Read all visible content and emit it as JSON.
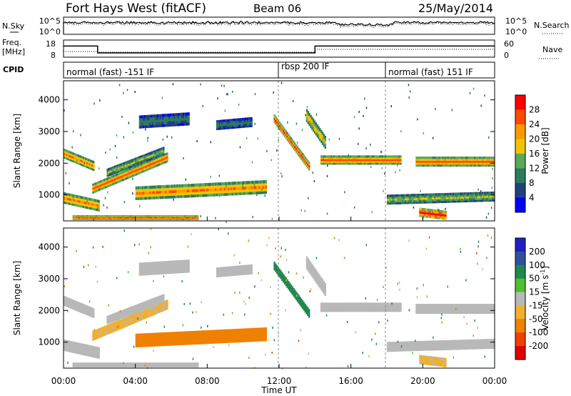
{
  "header": {
    "station": "Fort Hays West (fitACF)",
    "beam": "Beam 06",
    "date": "25/May/2014"
  },
  "noise_panel": {
    "left_label": "N.Sky",
    "right_label": "N.Search",
    "left_ticks": [
      "10^5",
      "10^0"
    ],
    "right_ticks": [
      "10^5",
      "10^0"
    ]
  },
  "freq_panel": {
    "left_label_line1": "Freq.",
    "left_label_line2": "[MHz]",
    "right_label": "Nave",
    "left_ticks": [
      "18",
      "8"
    ],
    "right_ticks": [
      "60",
      "0"
    ]
  },
  "cpid_panel": {
    "label": "CPID",
    "segments": [
      {
        "text": "normal (fast) -151 IF",
        "start": 0,
        "end": 12
      },
      {
        "text": "rbsp 200 IF",
        "start": 12,
        "end": 18
      },
      {
        "text": "normal (fast) 151 IF",
        "start": 18,
        "end": 24
      }
    ]
  },
  "power_panel": {
    "ylabel": "Slant Range [km]",
    "yticks": [
      "1000",
      "2000",
      "3000",
      "4000"
    ],
    "colorbar_label": "Power [dB]",
    "colorbar_ticks": [
      "28",
      "24",
      "20",
      "16",
      "12",
      "8",
      "4"
    ],
    "colorbar_colors": [
      "#ff0000",
      "#ff4a00",
      "#ff9a00",
      "#f2c400",
      "#5aa858",
      "#2e7a5e",
      "#204080",
      "#0000ff"
    ]
  },
  "velocity_panel": {
    "ylabel": "Slant Range [km]",
    "yticks": [
      "1000",
      "2000",
      "3000",
      "4000"
    ],
    "colorbar_label": "Velocity [m s",
    "colorbar_label_sup": "-1",
    "colorbar_label_end": "]",
    "colorbar_ticks": [
      "200",
      "100",
      "50",
      "15",
      "-15",
      "-50",
      "-100",
      "-200"
    ],
    "colorbar_colors": [
      "#2020c0",
      "#3050a0",
      "#208850",
      "#50c030",
      "#b8b8b8",
      "#f0b030",
      "#f08000",
      "#f04000",
      "#e00000"
    ]
  },
  "xaxis": {
    "label": "Time UT",
    "ticks": [
      "00:00",
      "04:00",
      "08:00",
      "12:00",
      "16:00",
      "20:00",
      "00:00"
    ]
  },
  "chart_data": {
    "type": "heatmap",
    "x_range_hours": [
      0,
      24
    ],
    "y_range_km": [
      180,
      4600
    ],
    "echo_bands": [
      {
        "t0": 0.0,
        "t1": 1.7,
        "r0": 2300,
        "r1": 1900,
        "width": 300,
        "power": 22,
        "velocity": 0
      },
      {
        "t0": 0.0,
        "t1": 2.0,
        "r0": 900,
        "r1": 650,
        "width": 350,
        "power": 22,
        "velocity": 0
      },
      {
        "t0": 1.6,
        "t1": 5.8,
        "r0": 1200,
        "r1": 2200,
        "width": 300,
        "power": 24,
        "velocity": -20
      },
      {
        "t0": 2.4,
        "t1": 5.6,
        "r0": 1700,
        "r1": 2400,
        "width": 250,
        "power": 14,
        "velocity": 0
      },
      {
        "t0": 4.0,
        "t1": 11.3,
        "r0": 1050,
        "r1": 1250,
        "width": 420,
        "power": 22,
        "velocity": -40
      },
      {
        "t0": 4.2,
        "t1": 7.0,
        "r0": 3300,
        "r1": 3400,
        "width": 400,
        "power": 8,
        "velocity": 0
      },
      {
        "t0": 8.5,
        "t1": 10.5,
        "r0": 3200,
        "r1": 3300,
        "width": 300,
        "power": 8,
        "velocity": 0
      },
      {
        "t0": 11.7,
        "t1": 13.7,
        "r0": 3400,
        "r1": 1850,
        "width": 260,
        "power": 26,
        "velocity": 40
      },
      {
        "t0": 13.5,
        "t1": 14.6,
        "r0": 3500,
        "r1": 2600,
        "width": 400,
        "power": 18,
        "velocity": 0
      },
      {
        "t0": 14.3,
        "t1": 18.8,
        "r0": 2100,
        "r1": 2100,
        "width": 280,
        "power": 24,
        "velocity": 0
      },
      {
        "t0": 19.6,
        "t1": 24.0,
        "r0": 2050,
        "r1": 2050,
        "width": 300,
        "power": 24,
        "velocity": 0
      },
      {
        "t0": 18.0,
        "t1": 24.0,
        "r0": 850,
        "r1": 950,
        "width": 300,
        "power": 14,
        "velocity": 0
      },
      {
        "t0": 19.8,
        "t1": 21.3,
        "r0": 450,
        "r1": 350,
        "width": 280,
        "power": 30,
        "velocity": -20
      },
      {
        "t0": 0.5,
        "t1": 7.5,
        "r0": 280,
        "r1": 280,
        "width": 140,
        "power": 26,
        "velocity": 0
      }
    ],
    "frequency_mhz": [
      {
        "t": 0,
        "v": 14.5
      },
      {
        "t": 1.9,
        "v": 14.5
      },
      {
        "t": 1.9,
        "v": 10.5
      },
      {
        "t": 14.0,
        "v": 10.5
      },
      {
        "t": 14.0,
        "v": 14.5
      },
      {
        "t": 24,
        "v": 14.5
      }
    ]
  }
}
